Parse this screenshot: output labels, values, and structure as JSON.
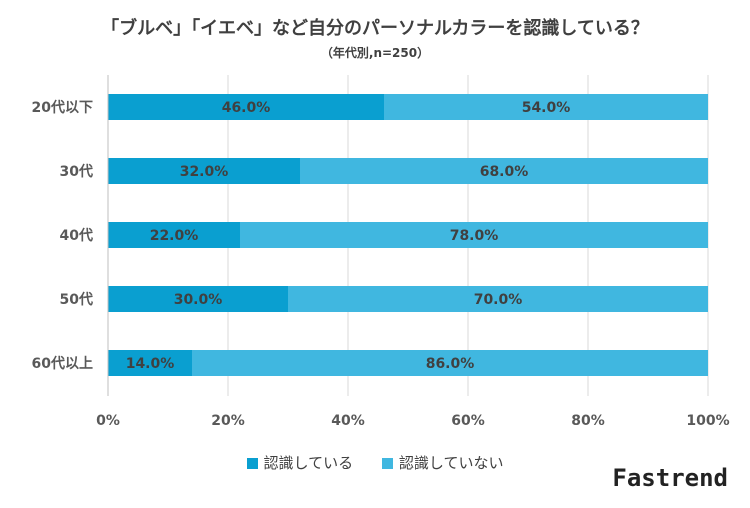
{
  "chart_data": {
    "type": "bar",
    "orientation": "horizontal",
    "stacked": true,
    "title": "「ブルベ」「イエベ」など自分のパーソナルカラーを認識している？",
    "subtitle": "（年代別,n=250）",
    "categories": [
      "20代以下",
      "30代",
      "40代",
      "50代",
      "60代以上"
    ],
    "series": [
      {
        "name": "認識している",
        "values": [
          46.0,
          32.0,
          22.0,
          30.0,
          14.0
        ],
        "labels": [
          "46.0%",
          "32.0%",
          "22.0%",
          "30.0%",
          "14.0%"
        ],
        "color": "#0a9fd0"
      },
      {
        "name": "認識していない",
        "values": [
          54.0,
          68.0,
          78.0,
          70.0,
          86.0
        ],
        "labels": [
          "54.0%",
          "68.0%",
          "78.0%",
          "70.0%",
          "86.0%"
        ],
        "color": "#40b7e0"
      }
    ],
    "xlim": [
      0,
      100
    ],
    "xticks": [
      0,
      20,
      40,
      60,
      80,
      100
    ],
    "xtick_labels": [
      "0%",
      "20%",
      "40%",
      "60%",
      "80%",
      "100%"
    ],
    "grid": true,
    "legend_position": "bottom"
  },
  "brand": "Fastrend"
}
